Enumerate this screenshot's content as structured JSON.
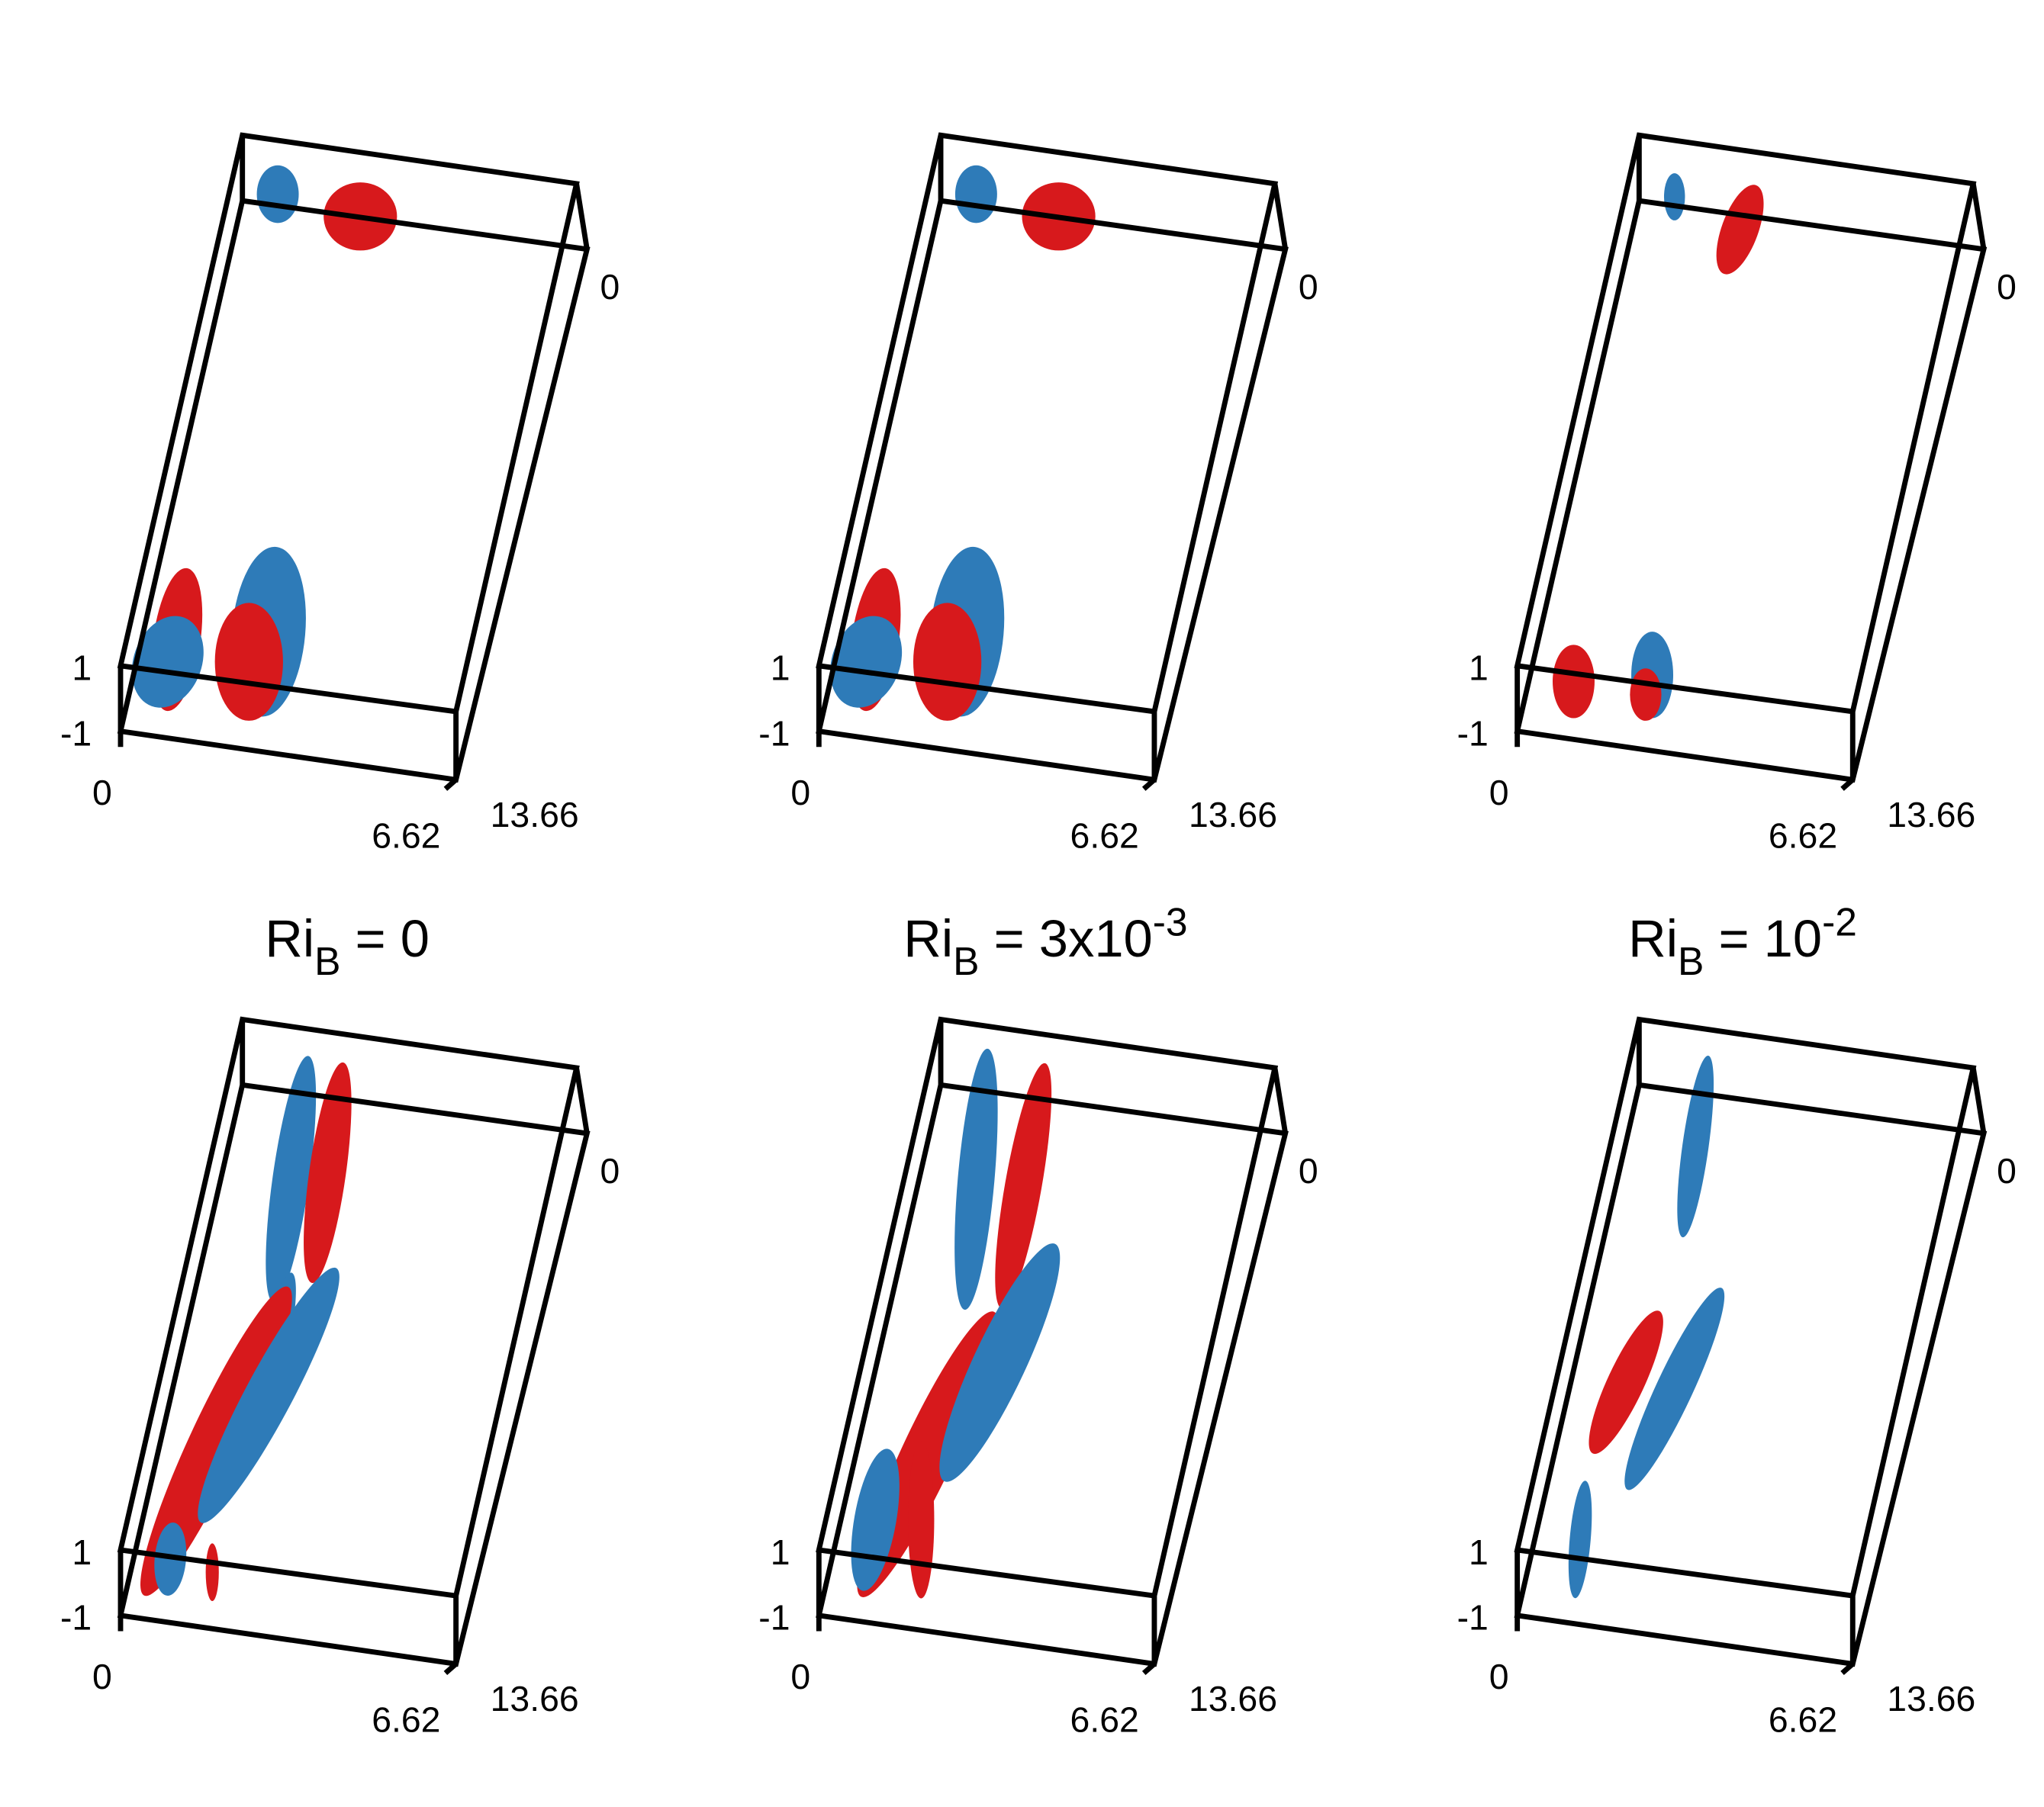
{
  "titles": [
    {
      "base": "Ri",
      "sub": "B",
      "rest": " = 0"
    },
    {
      "base": "Ri",
      "sub": "B",
      "rest": " = 3x10",
      "sup": "-3"
    },
    {
      "base": "Ri",
      "sub": "B",
      "rest": " = 10",
      "sup": "-2"
    }
  ],
  "panels": [
    {
      "labels": [
        "0",
        "1",
        "-1",
        "0",
        "6.62",
        "13.66"
      ]
    },
    {
      "labels": [
        "0",
        "1",
        "-1",
        "0",
        "6.62",
        "13.66"
      ]
    },
    {
      "labels": [
        "0",
        "1",
        "-1",
        "0",
        "6.62",
        "13.66"
      ]
    },
    {
      "labels": [
        "0",
        "1",
        "-1",
        "0",
        "6.62",
        "13.66"
      ]
    },
    {
      "labels": [
        "0",
        "1",
        "-1",
        "0",
        "6.62",
        "13.66"
      ]
    },
    {
      "labels": [
        "0",
        "1",
        "-1",
        "0",
        "6.62",
        "13.66"
      ]
    }
  ]
}
